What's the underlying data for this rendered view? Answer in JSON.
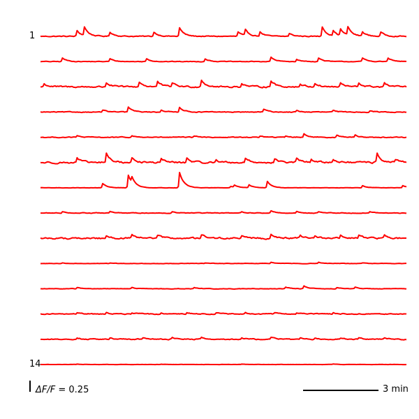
{
  "chart_data": {
    "type": "line",
    "title": "",
    "xlabel": "",
    "ylabel": "",
    "trace_count": 14,
    "first_label": "1",
    "last_label": "14",
    "line_color": "#ff0000",
    "scale_bar": {
      "y_symbol": "ΔF/F",
      "y_value": "= 0.25",
      "x_text": "3 min"
    },
    "traces": [
      {
        "baseline": 0,
        "noise": 0.012,
        "events": [
          [
            0.1,
            0.08
          ],
          [
            0.12,
            0.12
          ],
          [
            0.19,
            0.06
          ],
          [
            0.31,
            0.06
          ],
          [
            0.38,
            0.12
          ],
          [
            0.54,
            0.06
          ],
          [
            0.56,
            0.08
          ],
          [
            0.6,
            0.06
          ],
          [
            0.68,
            0.04
          ],
          [
            0.77,
            0.14
          ],
          [
            0.8,
            0.07
          ],
          [
            0.82,
            0.09
          ],
          [
            0.84,
            0.12
          ],
          [
            0.88,
            0.06
          ],
          [
            0.93,
            0.06
          ]
        ]
      },
      {
        "baseline": 0,
        "noise": 0.008,
        "events": [
          [
            0.06,
            0.05
          ],
          [
            0.19,
            0.04
          ],
          [
            0.29,
            0.04
          ],
          [
            0.45,
            0.04
          ],
          [
            0.63,
            0.06
          ],
          [
            0.7,
            0.03
          ],
          [
            0.76,
            0.05
          ],
          [
            0.88,
            0.05
          ],
          [
            0.95,
            0.05
          ]
        ]
      },
      {
        "baseline": 0,
        "noise": 0.02,
        "events": [
          [
            0.01,
            0.04
          ],
          [
            0.18,
            0.06
          ],
          [
            0.27,
            0.07
          ],
          [
            0.32,
            0.07
          ],
          [
            0.36,
            0.06
          ],
          [
            0.44,
            0.1
          ],
          [
            0.55,
            0.05
          ],
          [
            0.63,
            0.09
          ],
          [
            0.71,
            0.04
          ],
          [
            0.75,
            0.05
          ],
          [
            0.82,
            0.05
          ],
          [
            0.87,
            0.05
          ],
          [
            0.94,
            0.05
          ]
        ]
      },
      {
        "baseline": 0,
        "noise": 0.01,
        "events": [
          [
            0.17,
            0.03
          ],
          [
            0.24,
            0.07
          ],
          [
            0.33,
            0.03
          ],
          [
            0.38,
            0.07
          ],
          [
            0.61,
            0.04
          ],
          [
            0.7,
            0.02
          ],
          [
            0.8,
            0.02
          ],
          [
            0.9,
            0.02
          ]
        ]
      },
      {
        "baseline": 0,
        "noise": 0.01,
        "events": [
          [
            0.1,
            0.02
          ],
          [
            0.25,
            0.02
          ],
          [
            0.42,
            0.02
          ],
          [
            0.6,
            0.02
          ],
          [
            0.67,
            0.02
          ],
          [
            0.72,
            0.05
          ],
          [
            0.81,
            0.03
          ],
          [
            0.86,
            0.03
          ]
        ]
      },
      {
        "baseline": 0,
        "noise": 0.022,
        "events": [
          [
            0.1,
            0.06
          ],
          [
            0.18,
            0.13
          ],
          [
            0.25,
            0.06
          ],
          [
            0.33,
            0.06
          ],
          [
            0.4,
            0.06
          ],
          [
            0.48,
            0.04
          ],
          [
            0.56,
            0.06
          ],
          [
            0.64,
            0.05
          ],
          [
            0.7,
            0.06
          ],
          [
            0.74,
            0.05
          ],
          [
            0.8,
            0.05
          ],
          [
            0.92,
            0.13
          ],
          [
            0.97,
            0.04
          ]
        ]
      },
      {
        "baseline": 0,
        "noise": 0.004,
        "events": [
          [
            0.17,
            0.06
          ],
          [
            0.24,
            0.18
          ],
          [
            0.25,
            0.08
          ],
          [
            0.38,
            0.22
          ],
          [
            0.52,
            0.02
          ],
          [
            0.53,
            0.03
          ],
          [
            0.57,
            0.04
          ],
          [
            0.62,
            0.09
          ],
          [
            0.88,
            0.03
          ],
          [
            0.99,
            0.03
          ]
        ]
      },
      {
        "baseline": 0,
        "noise": 0.008,
        "events": [
          [
            0.06,
            0.02
          ],
          [
            0.19,
            0.02
          ],
          [
            0.36,
            0.02
          ],
          [
            0.55,
            0.02
          ],
          [
            0.63,
            0.03
          ],
          [
            0.7,
            0.02
          ],
          [
            0.76,
            0.02
          ],
          [
            0.9,
            0.02
          ]
        ]
      },
      {
        "baseline": 0,
        "noise": 0.02,
        "events": [
          [
            0.18,
            0.04
          ],
          [
            0.25,
            0.04
          ],
          [
            0.32,
            0.05
          ],
          [
            0.44,
            0.06
          ],
          [
            0.55,
            0.04
          ],
          [
            0.63,
            0.05
          ],
          [
            0.71,
            0.04
          ],
          [
            0.75,
            0.04
          ],
          [
            0.82,
            0.04
          ],
          [
            0.87,
            0.04
          ],
          [
            0.94,
            0.04
          ]
        ]
      },
      {
        "baseline": 0,
        "noise": 0.005,
        "events": [
          [
            0.06,
            0.01
          ],
          [
            0.19,
            0.01
          ],
          [
            0.45,
            0.01
          ],
          [
            0.63,
            0.02
          ],
          [
            0.76,
            0.02
          ],
          [
            0.88,
            0.01
          ]
        ]
      },
      {
        "baseline": 0,
        "noise": 0.006,
        "events": [
          [
            0.1,
            0.02
          ],
          [
            0.25,
            0.02
          ],
          [
            0.42,
            0.02
          ],
          [
            0.67,
            0.02
          ],
          [
            0.72,
            0.04
          ],
          [
            0.81,
            0.02
          ],
          [
            0.86,
            0.02
          ]
        ]
      },
      {
        "baseline": 0,
        "noise": 0.012,
        "events": [
          [
            0.1,
            0.02
          ],
          [
            0.18,
            0.02
          ],
          [
            0.25,
            0.02
          ],
          [
            0.33,
            0.02
          ],
          [
            0.4,
            0.02
          ],
          [
            0.48,
            0.02
          ],
          [
            0.56,
            0.02
          ],
          [
            0.64,
            0.02
          ],
          [
            0.7,
            0.02
          ],
          [
            0.8,
            0.02
          ]
        ]
      },
      {
        "baseline": 0,
        "noise": 0.012,
        "events": [
          [
            0.1,
            0.02
          ],
          [
            0.19,
            0.02
          ],
          [
            0.28,
            0.02
          ],
          [
            0.36,
            0.02
          ],
          [
            0.44,
            0.02
          ],
          [
            0.55,
            0.02
          ],
          [
            0.63,
            0.03
          ],
          [
            0.71,
            0.02
          ],
          [
            0.75,
            0.02
          ],
          [
            0.82,
            0.02
          ],
          [
            0.87,
            0.02
          ],
          [
            0.94,
            0.02
          ]
        ]
      },
      {
        "baseline": 0,
        "noise": 0.003,
        "events": [
          [
            0.1,
            0.005
          ],
          [
            0.33,
            0.005
          ],
          [
            0.55,
            0.005
          ],
          [
            0.8,
            0.005
          ]
        ]
      }
    ]
  }
}
